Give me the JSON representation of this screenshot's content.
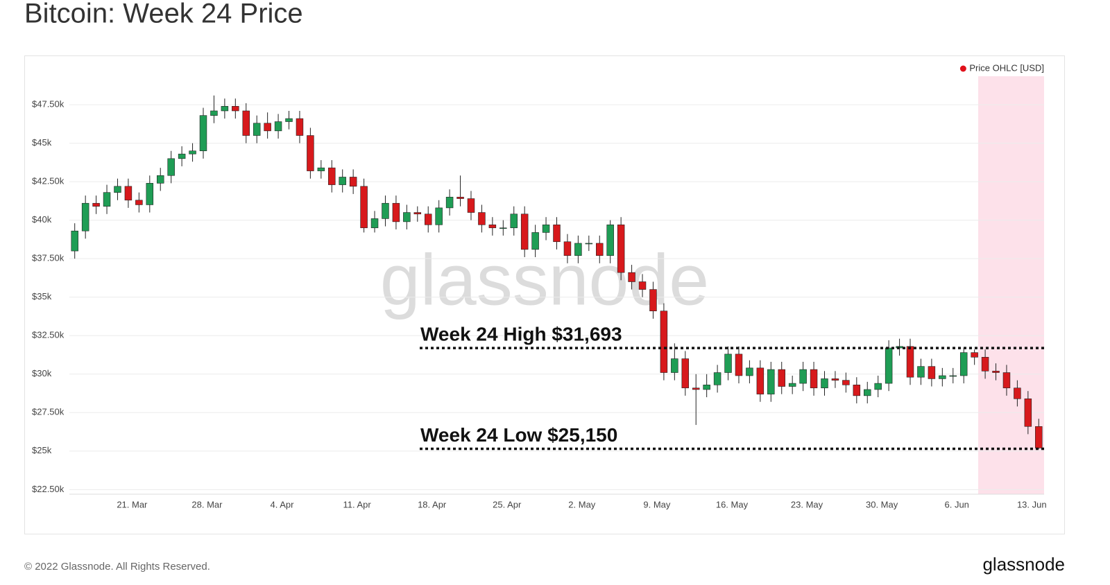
{
  "chart_data": {
    "type": "candlestick",
    "title": "Bitcoin: Week 24 Price",
    "footer": "© 2022 Glassnode. All Rights Reserved.",
    "logo": "glassnode",
    "watermark": "glassnode",
    "x": [
      "15. Mar",
      "16. Mar",
      "17. Mar",
      "18. Mar",
      "19. Mar",
      "20. Mar",
      "21. Mar",
      "22. Mar",
      "23. Mar",
      "24. Mar",
      "25. Mar",
      "26. Mar",
      "27. Mar",
      "28. Mar",
      "29. Mar",
      "30. Mar",
      "31. Mar",
      "1. Apr",
      "2. Apr",
      "3. Apr",
      "4. Apr",
      "5. Apr",
      "6. Apr",
      "7. Apr",
      "8. Apr",
      "9. Apr",
      "10. Apr",
      "11. Apr",
      "12. Apr",
      "13. Apr",
      "14. Apr",
      "15. Apr",
      "16. Apr",
      "17. Apr",
      "18. Apr",
      "19. Apr",
      "20. Apr",
      "21. Apr",
      "22. Apr",
      "23. Apr",
      "24. Apr",
      "25. Apr",
      "26. Apr",
      "27. Apr",
      "28. Apr",
      "29. Apr",
      "30. Apr",
      "1. May",
      "2. May",
      "3. May",
      "4. May",
      "5. May",
      "6. May",
      "7. May",
      "8. May",
      "9. May",
      "10. May",
      "11. May",
      "12. May",
      "13. May",
      "14. May",
      "15. May",
      "16. May",
      "17. May",
      "18. May",
      "19. May",
      "20. May",
      "21. May",
      "22. May",
      "23. May",
      "24. May",
      "25. May",
      "26. May",
      "27. May",
      "28. May",
      "29. May",
      "30. May",
      "31. May",
      "1. Jun",
      "2. Jun",
      "3. Jun",
      "4. Jun",
      "5. Jun",
      "6. Jun",
      "7. Jun",
      "8. Jun",
      "9. Jun",
      "10. Jun",
      "11. Jun",
      "12. Jun",
      "13. Jun"
    ],
    "series": [
      {
        "name": "Price OHLC [USD]",
        "color": "#e0101a",
        "up_color": "#1f9d55",
        "down_color": "#d7191c",
        "open": [
          38000,
          39300,
          41100,
          40900,
          41800,
          42200,
          41300,
          41000,
          42400,
          42900,
          44000,
          44300,
          44500,
          46800,
          47100,
          47400,
          47100,
          45500,
          46300,
          45800,
          46400,
          46600,
          45500,
          43200,
          43400,
          42300,
          42800,
          42200,
          39500,
          40100,
          41100,
          39900,
          40500,
          40400,
          39700,
          40800,
          41500,
          41400,
          40500,
          39700,
          39500,
          39500,
          40400,
          38100,
          39200,
          39700,
          38600,
          37700,
          38500,
          38500,
          37700,
          39700,
          36600,
          36000,
          35500,
          34100,
          30100,
          31000,
          29100,
          29000,
          29300,
          30100,
          31300,
          29900,
          30400,
          28700,
          30300,
          29200,
          29400,
          30300,
          29100,
          29700,
          29600,
          29300,
          28600,
          29000,
          29400,
          31700,
          31800,
          29800,
          30500,
          29700,
          29900,
          29900,
          31400,
          31100,
          30200,
          30100,
          29100,
          28400,
          26600
        ],
        "high": [
          39800,
          41600,
          41600,
          42300,
          42700,
          42700,
          41800,
          42900,
          43400,
          44500,
          44800,
          45000,
          47300,
          48100,
          47900,
          47900,
          47600,
          46800,
          47000,
          46900,
          47100,
          47100,
          46000,
          43900,
          43900,
          43300,
          43300,
          42700,
          40600,
          41600,
          41600,
          41000,
          40900,
          40900,
          41300,
          42000,
          42900,
          41900,
          41000,
          40200,
          40000,
          40900,
          40900,
          39700,
          40200,
          40200,
          39100,
          39000,
          39000,
          39000,
          40000,
          40200,
          37100,
          36500,
          36000,
          34600,
          32000,
          31500,
          30000,
          30000,
          30600,
          31800,
          31800,
          30900,
          30900,
          30800,
          30800,
          29900,
          30800,
          30800,
          30200,
          30200,
          30100,
          29800,
          29500,
          29900,
          32200,
          32300,
          32300,
          31000,
          31000,
          30400,
          30400,
          31693,
          31600,
          31600,
          30700,
          30600,
          29600,
          28900,
          27100
        ],
        "low": [
          37500,
          38800,
          40400,
          40400,
          41300,
          40800,
          40500,
          40500,
          41900,
          42400,
          43500,
          43800,
          44000,
          46300,
          46600,
          46600,
          45000,
          45000,
          45300,
          45300,
          45900,
          45000,
          42700,
          42700,
          41800,
          41800,
          41700,
          39200,
          39200,
          39600,
          39400,
          39400,
          39900,
          39200,
          39200,
          40300,
          40900,
          40000,
          39200,
          39000,
          39000,
          39000,
          37600,
          37600,
          38700,
          38100,
          37200,
          37200,
          38000,
          37200,
          37200,
          36100,
          35500,
          35000,
          33600,
          29600,
          29600,
          28600,
          26700,
          28500,
          28800,
          29600,
          29400,
          29400,
          28200,
          28200,
          28700,
          28700,
          28900,
          28600,
          28600,
          29100,
          28800,
          28100,
          28100,
          28500,
          28900,
          31200,
          29300,
          29300,
          29200,
          29200,
          29400,
          29400,
          30600,
          29700,
          29600,
          28600,
          27900,
          26100,
          25150
        ],
        "close": [
          39300,
          41100,
          40900,
          41800,
          42200,
          41300,
          41000,
          42400,
          42900,
          44000,
          44300,
          44500,
          46800,
          47100,
          47400,
          47100,
          45500,
          46300,
          45800,
          46400,
          46600,
          45500,
          43200,
          43400,
          42300,
          42800,
          42200,
          39500,
          40100,
          41100,
          39900,
          40500,
          40400,
          39700,
          40800,
          41500,
          41400,
          40500,
          39700,
          39500,
          39500,
          40400,
          38100,
          39200,
          39700,
          38600,
          37700,
          38500,
          38500,
          37700,
          39700,
          36600,
          36000,
          35500,
          34100,
          30100,
          31000,
          29100,
          29000,
          29300,
          30100,
          31300,
          29900,
          30400,
          28700,
          30300,
          29200,
          29400,
          30300,
          29100,
          29700,
          29600,
          29300,
          28600,
          29000,
          29400,
          31700,
          31800,
          29800,
          30500,
          29700,
          29900,
          29900,
          31400,
          31100,
          30200,
          30100,
          29100,
          28400,
          26600,
          25200
        ]
      }
    ],
    "ylim": [
      22200,
      49800
    ],
    "yticks": [
      {
        "value": 22500,
        "label": "$22.50k"
      },
      {
        "value": 25000,
        "label": "$25k"
      },
      {
        "value": 27500,
        "label": "$27.50k"
      },
      {
        "value": 30000,
        "label": "$30k"
      },
      {
        "value": 32500,
        "label": "$32.50k"
      },
      {
        "value": 35000,
        "label": "$35k"
      },
      {
        "value": 37500,
        "label": "$37.50k"
      },
      {
        "value": 40000,
        "label": "$40k"
      },
      {
        "value": 42500,
        "label": "$42.50k"
      },
      {
        "value": 45000,
        "label": "$45k"
      },
      {
        "value": 47500,
        "label": "$47.50k"
      }
    ],
    "xticks": [
      "21. Mar",
      "28. Mar",
      "4. Apr",
      "11. Apr",
      "18. Apr",
      "25. Apr",
      "2. May",
      "9. May",
      "16. May",
      "23. May",
      "30. May",
      "6. Jun",
      "13. Jun"
    ],
    "grid": true,
    "legend": "top-right",
    "annotations": [
      {
        "label": "Week 24 High $31,693",
        "value": 31693
      },
      {
        "label": "Week 24 Low $25,150",
        "value": 25150
      }
    ]
  }
}
